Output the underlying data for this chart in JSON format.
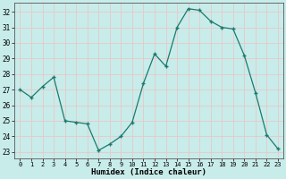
{
  "x": [
    0,
    1,
    2,
    3,
    4,
    5,
    6,
    7,
    8,
    9,
    10,
    11,
    12,
    13,
    14,
    15,
    16,
    17,
    18,
    19,
    20,
    21,
    22,
    23
  ],
  "y": [
    27.0,
    26.5,
    27.2,
    27.8,
    25.0,
    24.9,
    24.8,
    23.1,
    23.5,
    24.0,
    24.9,
    27.4,
    29.3,
    28.5,
    31.0,
    32.2,
    32.1,
    31.4,
    31.0,
    30.9,
    29.2,
    26.8,
    24.1,
    23.2
  ],
  "line_color": "#1a7a6e",
  "marker_color": "#1a7a6e",
  "bg_color": "#c8ecea",
  "grid_color_major": "#e8c8c8",
  "grid_color_minor": "#e8c8c8",
  "xlabel": "Humidex (Indice chaleur)",
  "yticks": [
    23,
    24,
    25,
    26,
    27,
    28,
    29,
    30,
    31,
    32
  ],
  "ylim": [
    22.6,
    32.6
  ],
  "xlim": [
    -0.5,
    23.5
  ]
}
